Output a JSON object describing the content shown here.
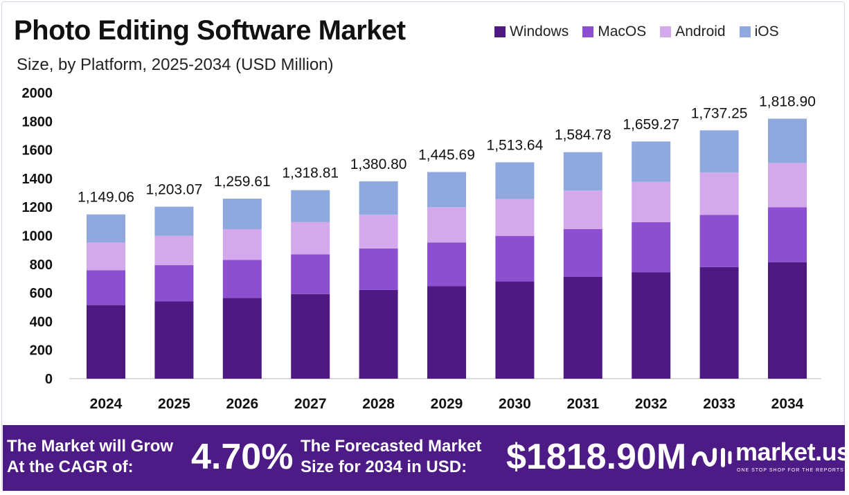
{
  "header": {
    "title": "Photo Editing Software Market",
    "subtitle": "Size, by Platform, 2025-2034 (USD Million)"
  },
  "legend": [
    {
      "label": "Windows",
      "color": "#4e1a82"
    },
    {
      "label": "MacOS",
      "color": "#8b4fd0"
    },
    {
      "label": "Android",
      "color": "#d4a9ec"
    },
    {
      "label": "iOS",
      "color": "#8fa8dd"
    }
  ],
  "chart_data": {
    "type": "bar",
    "stacked": true,
    "title": "Photo Editing Software Market",
    "subtitle": "Size, by Platform, 2025-2034 (USD Million)",
    "categories": [
      "2024",
      "2025",
      "2026",
      "2027",
      "2028",
      "2029",
      "2030",
      "2031",
      "2032",
      "2033",
      "2034"
    ],
    "series": [
      {
        "name": "Windows",
        "color": "#4e1a82",
        "values": [
          515,
          540,
          565,
          592,
          620,
          648,
          680,
          712,
          745,
          780,
          815
        ]
      },
      {
        "name": "MacOS",
        "color": "#8b4fd0",
        "values": [
          243,
          254,
          266,
          278,
          291,
          305,
          319,
          334,
          350,
          366,
          384
        ]
      },
      {
        "name": "Android",
        "color": "#d4a9ec",
        "values": [
          196,
          205,
          215,
          225,
          236,
          247,
          258,
          270,
          282,
          296,
          310
        ]
      },
      {
        "name": "iOS",
        "color": "#8fa8dd",
        "values": [
          195.06,
          204.07,
          213.61,
          223.81,
          233.8,
          245.69,
          256.64,
          268.78,
          282.27,
          295.25,
          309.9
        ]
      }
    ],
    "totals": [
      1149.06,
      1203.07,
      1259.61,
      1318.81,
      1380.8,
      1445.69,
      1513.64,
      1584.78,
      1659.27,
      1737.25,
      1818.9
    ],
    "total_labels": [
      "1,149.06",
      "1,203.07",
      "1,259.61",
      "1,318.81",
      "1,380.80",
      "1,445.69",
      "1,513.64",
      "1,584.78",
      "1,659.27",
      "1,737.25",
      "1,818.90"
    ],
    "ylim": [
      0,
      2000
    ],
    "yticks": [
      0,
      200,
      400,
      600,
      800,
      1000,
      1200,
      1400,
      1600,
      1800,
      2000
    ],
    "grid": false,
    "legend_position": "top-right"
  },
  "footer": {
    "cagr_label_line1": "The Market will Grow",
    "cagr_label_line2": "At the CAGR of:",
    "cagr_value": "4.70%",
    "forecast_label_line1": "The Forecasted Market",
    "forecast_label_line2": "Size for 2034 in USD:",
    "forecast_value": "$1818.90M",
    "brand_name": "market.us",
    "brand_tagline": "ONE STOP SHOP FOR THE REPORTS",
    "colors": {
      "banner": "#4d1b85",
      "cagr_accent": "#ffffff"
    }
  }
}
